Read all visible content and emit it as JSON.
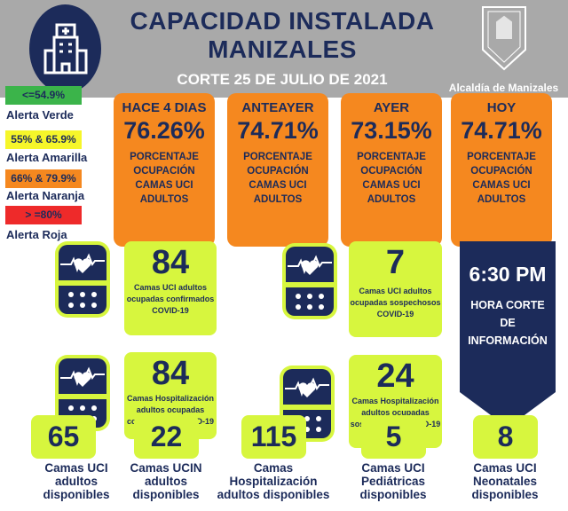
{
  "header": {
    "title_line1": "CAPACIDAD INSTALADA",
    "title_line2": "MANIZALES",
    "subtitle": "CORTE 25 DE JULIO DE 2021",
    "logo_text": "Alcaldía de Manizales"
  },
  "legend": [
    {
      "range": "<=54.9%",
      "label": "Alerta Verde",
      "color": "#3bb44a"
    },
    {
      "range": "55% & 65.9%",
      "label": "Alerta Amarilla",
      "color": "#f6f62a"
    },
    {
      "range": "66% & 79.9%",
      "label": "Alerta Naranja",
      "color": "#f5881f"
    },
    {
      "range": "> =80%",
      "label": "Alerta Roja",
      "color": "#ee2a2a"
    }
  ],
  "occupancy": [
    {
      "period": "HACE 4 DIAS",
      "value": "76.26%",
      "desc": "PORCENTAJE OCUPACIÓN CAMAS UCI ADULTOS"
    },
    {
      "period": "ANTEAYER",
      "value": "74.71%",
      "desc": "PORCENTAJE OCUPACIÓN CAMAS UCI ADULTOS"
    },
    {
      "period": "AYER",
      "value": "73.15%",
      "desc": "PORCENTAJE OCUPACIÓN CAMAS UCI ADULTOS"
    },
    {
      "period": "HOY",
      "value": "74.71%",
      "desc": "PORCENTAJE OCUPACIÓN CAMAS UCI ADULTOS"
    }
  ],
  "covid": [
    {
      "value": "84",
      "desc": "Camas UCI adultos ocupadas confirmados COVID-19"
    },
    {
      "value": "7",
      "desc": "Camas UCI adultos ocupadas sospechosos COVID-19"
    },
    {
      "value": "84",
      "desc": "Camas Hospitalización adultos ocupadas confirmados COVID-19"
    },
    {
      "value": "24",
      "desc": "Camas Hospitalización adultos ocupadas sospechosos COVID-19"
    }
  ],
  "cutoff": {
    "time": "6:30 PM",
    "label": "HORA CORTE DE INFORMACIÓN"
  },
  "available": [
    {
      "value": "65",
      "label": "Camas UCI adultos disponibles"
    },
    {
      "value": "22",
      "label": "Camas UCIN adultos disponibles"
    },
    {
      "value": "115",
      "label": "Camas Hospitalización adultos disponibles"
    },
    {
      "value": "5",
      "label": "Camas UCI Pediátricas disponibles"
    },
    {
      "value": "8",
      "label": "Camas UCI Neonatales disponibles"
    }
  ]
}
